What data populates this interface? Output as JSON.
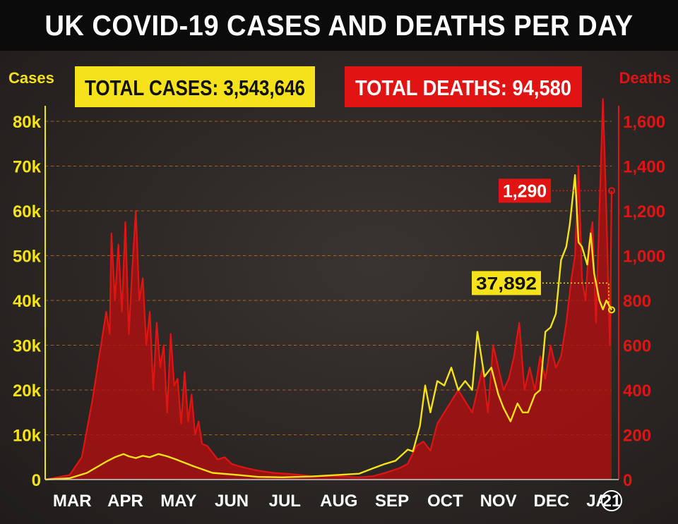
{
  "title": "UK COVID-19 CASES AND DEATHS PER DAY",
  "colors": {
    "cases": "#f5e21a",
    "deaths": "#e11414",
    "deaths_fill": "#b01010",
    "background": "#2a2624",
    "header": "#0b0b0b"
  },
  "totals": {
    "cases_label": "TOTAL CASES: 3,543,646",
    "deaths_label": "TOTAL DEATHS: 94,580"
  },
  "callouts": {
    "deaths_latest": "1,290",
    "cases_latest": "37,892"
  },
  "chart_data": {
    "type": "line",
    "title": "UK COVID-19 CASES AND DEATHS PER DAY",
    "x_unit": "date",
    "x_range": [
      "2020-03-01",
      "2021-01-20"
    ],
    "month_labels": [
      "MAR",
      "APR",
      "MAY",
      "JUN",
      "JUL",
      "AUG",
      "SEP",
      "OCT",
      "NOV",
      "DEC",
      "JA"
    ],
    "year_marker": "21",
    "left_axis": {
      "label": "Cases",
      "ylim": [
        0,
        80000
      ],
      "ticks": [
        0,
        10000,
        20000,
        30000,
        40000,
        50000,
        60000,
        70000,
        80000
      ],
      "tick_labels": [
        "0",
        "10k",
        "20k",
        "30k",
        "40k",
        "50k",
        "60k",
        "70k",
        "80k"
      ]
    },
    "right_axis": {
      "label": "Deaths",
      "ylim": [
        0,
        1600
      ],
      "ticks": [
        0,
        200,
        400,
        600,
        800,
        1000,
        1200,
        1400,
        1600
      ],
      "tick_labels": [
        "0",
        "200",
        "400",
        "600",
        "800",
        "1,000",
        "1,200",
        "1,400",
        "1,600"
      ]
    },
    "grid": true,
    "series": [
      {
        "name": "Cases",
        "axis": "left",
        "render": "line",
        "x": [
          "2020-03-01",
          "2020-03-15",
          "2020-03-25",
          "2020-04-05",
          "2020-04-10",
          "2020-04-15",
          "2020-04-18",
          "2020-04-22",
          "2020-04-26",
          "2020-04-30",
          "2020-05-05",
          "2020-05-10",
          "2020-05-15",
          "2020-05-25",
          "2020-06-05",
          "2020-06-20",
          "2020-07-01",
          "2020-07-15",
          "2020-08-01",
          "2020-08-15",
          "2020-08-28",
          "2020-09-05",
          "2020-09-12",
          "2020-09-18",
          "2020-09-22",
          "2020-09-25",
          "2020-09-28",
          "2020-10-02",
          "2020-10-05",
          "2020-10-08",
          "2020-10-12",
          "2020-10-16",
          "2020-10-20",
          "2020-10-24",
          "2020-10-28",
          "2020-11-01",
          "2020-11-04",
          "2020-11-08",
          "2020-11-12",
          "2020-11-16",
          "2020-11-19",
          "2020-11-23",
          "2020-11-27",
          "2020-11-30",
          "2020-12-03",
          "2020-12-07",
          "2020-12-10",
          "2020-12-13",
          "2020-12-16",
          "2020-12-19",
          "2020-12-22",
          "2020-12-25",
          "2020-12-27",
          "2020-12-30",
          "2021-01-01",
          "2021-01-03",
          "2021-01-06",
          "2021-01-08",
          "2021-01-10",
          "2021-01-13",
          "2021-01-15",
          "2021-01-17",
          "2021-01-20"
        ],
        "y": [
          0,
          300,
          1500,
          4000,
          5000,
          5700,
          5200,
          4800,
          5300,
          5000,
          5700,
          5200,
          4500,
          3000,
          1500,
          1000,
          600,
          500,
          700,
          1000,
          1300,
          2500,
          3500,
          4200,
          5600,
          6700,
          6300,
          12000,
          21000,
          15000,
          22000,
          21000,
          25000,
          20000,
          22000,
          20000,
          33000,
          23000,
          25000,
          19000,
          16000,
          13000,
          17000,
          15000,
          15000,
          19000,
          20000,
          33000,
          34000,
          37000,
          49000,
          52000,
          57000,
          68000,
          53000,
          52000,
          48000,
          55000,
          46000,
          40000,
          38000,
          40000,
          37892
        ]
      },
      {
        "name": "Deaths",
        "axis": "right",
        "render": "area",
        "x": [
          "2020-03-01",
          "2020-03-15",
          "2020-03-22",
          "2020-03-28",
          "2020-04-01",
          "2020-04-05",
          "2020-04-07",
          "2020-04-08",
          "2020-04-10",
          "2020-04-12",
          "2020-04-14",
          "2020-04-16",
          "2020-04-18",
          "2020-04-20",
          "2020-04-22",
          "2020-04-24",
          "2020-04-26",
          "2020-04-28",
          "2020-04-30",
          "2020-05-02",
          "2020-05-04",
          "2020-05-06",
          "2020-05-08",
          "2020-05-10",
          "2020-05-12",
          "2020-05-14",
          "2020-05-16",
          "2020-05-18",
          "2020-05-20",
          "2020-05-22",
          "2020-05-24",
          "2020-05-26",
          "2020-05-28",
          "2020-05-30",
          "2020-06-02",
          "2020-06-05",
          "2020-06-08",
          "2020-06-12",
          "2020-06-16",
          "2020-06-20",
          "2020-06-25",
          "2020-07-01",
          "2020-07-10",
          "2020-07-20",
          "2020-08-01",
          "2020-08-15",
          "2020-08-28",
          "2020-09-05",
          "2020-09-12",
          "2020-09-20",
          "2020-09-25",
          "2020-09-30",
          "2020-10-04",
          "2020-10-08",
          "2020-10-12",
          "2020-10-16",
          "2020-10-20",
          "2020-10-24",
          "2020-10-28",
          "2020-11-01",
          "2020-11-04",
          "2020-11-07",
          "2020-11-10",
          "2020-11-13",
          "2020-11-16",
          "2020-11-19",
          "2020-11-22",
          "2020-11-25",
          "2020-11-28",
          "2020-12-01",
          "2020-12-04",
          "2020-12-07",
          "2020-12-10",
          "2020-12-13",
          "2020-12-16",
          "2020-12-19",
          "2020-12-22",
          "2020-12-25",
          "2020-12-28",
          "2020-12-30",
          "2021-01-01",
          "2021-01-03",
          "2021-01-05",
          "2021-01-07",
          "2021-01-09",
          "2021-01-11",
          "2021-01-13",
          "2021-01-15",
          "2021-01-17",
          "2021-01-19",
          "2021-01-20"
        ],
        "y": [
          0,
          20,
          100,
          350,
          550,
          750,
          650,
          1100,
          800,
          1050,
          750,
          1150,
          650,
          950,
          1200,
          800,
          900,
          600,
          750,
          400,
          700,
          500,
          600,
          300,
          650,
          420,
          450,
          250,
          480,
          260,
          380,
          200,
          260,
          160,
          150,
          120,
          90,
          100,
          70,
          60,
          50,
          40,
          30,
          25,
          15,
          15,
          10,
          15,
          30,
          50,
          70,
          150,
          170,
          130,
          250,
          300,
          350,
          400,
          350,
          300,
          400,
          500,
          300,
          600,
          500,
          400,
          450,
          550,
          700,
          400,
          500,
          400,
          550,
          450,
          600,
          500,
          550,
          700,
          900,
          1000,
          1400,
          900,
          800,
          1050,
          1150,
          700,
          1200,
          1700,
          1200,
          600,
          1290
        ]
      }
    ]
  }
}
